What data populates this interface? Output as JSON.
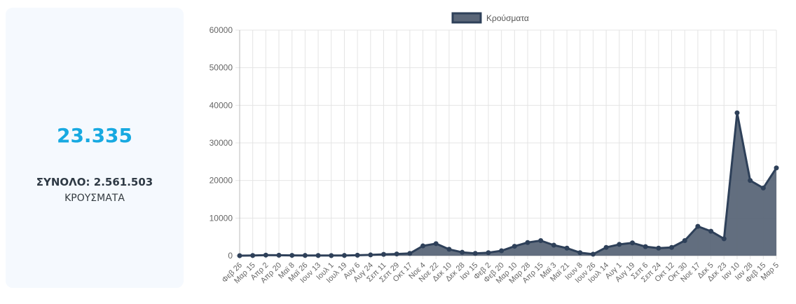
{
  "summary": {
    "today_value": "23.335",
    "total_text": "ΣΥΝΟΛΟ: 2.561.503",
    "label": "ΚΡΟΥΣΜΑΤΑ"
  },
  "colors": {
    "accent": "#17a9e1",
    "series_line": "#2e4059",
    "series_fill": "#5a6678",
    "grid": "#e4e4e4",
    "card_bg": "#f5f9fe"
  },
  "chart_data": {
    "type": "line",
    "title": "",
    "xlabel": "",
    "ylabel": "",
    "ylim": [
      0,
      60000
    ],
    "yticks": [
      "0",
      "10000",
      "20000",
      "30000",
      "40000",
      "50000",
      "60000"
    ],
    "legend": {
      "position": "top-center",
      "entries": [
        "Κρούσματα"
      ]
    },
    "grid": true,
    "x_tick_labels": [
      "Φεβ 26",
      "Μαρ 15",
      "Απρ 2",
      "Απρ 20",
      "Μαϊ 8",
      "Μαϊ 26",
      "Ιουν 13",
      "Ιουλ 1",
      "Ιουλ 19",
      "Αυγ 6",
      "Αυγ 24",
      "Σεπ 11",
      "Σεπ 29",
      "Οκτ 17",
      "Νοε 4",
      "Νοε 22",
      "Δεκ 10",
      "Δεκ 28",
      "Ιαν 15",
      "Φεβ 2",
      "Φεβ 20",
      "Μαρ 10",
      "Μαρ 28",
      "Απρ 15",
      "Μαϊ 3",
      "Μαϊ 21",
      "Ιουν 8",
      "Ιουν 26",
      "Ιουλ 14",
      "Αυγ 1",
      "Αυγ 19",
      "Σεπ 6",
      "Σεπ 24",
      "Οκτ 12",
      "Οκτ 30",
      "Νοε 17",
      "Δεκ 5",
      "Δεκ 23",
      "Ιαν 10",
      "Ιαν 28",
      "Φεβ 15",
      "Μαρ 5"
    ],
    "series": [
      {
        "name": "Κρούσματα",
        "values": [
          0,
          50,
          150,
          120,
          80,
          60,
          40,
          30,
          60,
          120,
          200,
          350,
          450,
          600,
          2600,
          3200,
          1700,
          900,
          600,
          800,
          1300,
          2500,
          3500,
          4000,
          2800,
          2000,
          800,
          400,
          2200,
          3000,
          3400,
          2400,
          2000,
          2200,
          4000,
          7800,
          6500,
          4500,
          38000,
          20000,
          18000,
          23335
        ]
      }
    ]
  }
}
